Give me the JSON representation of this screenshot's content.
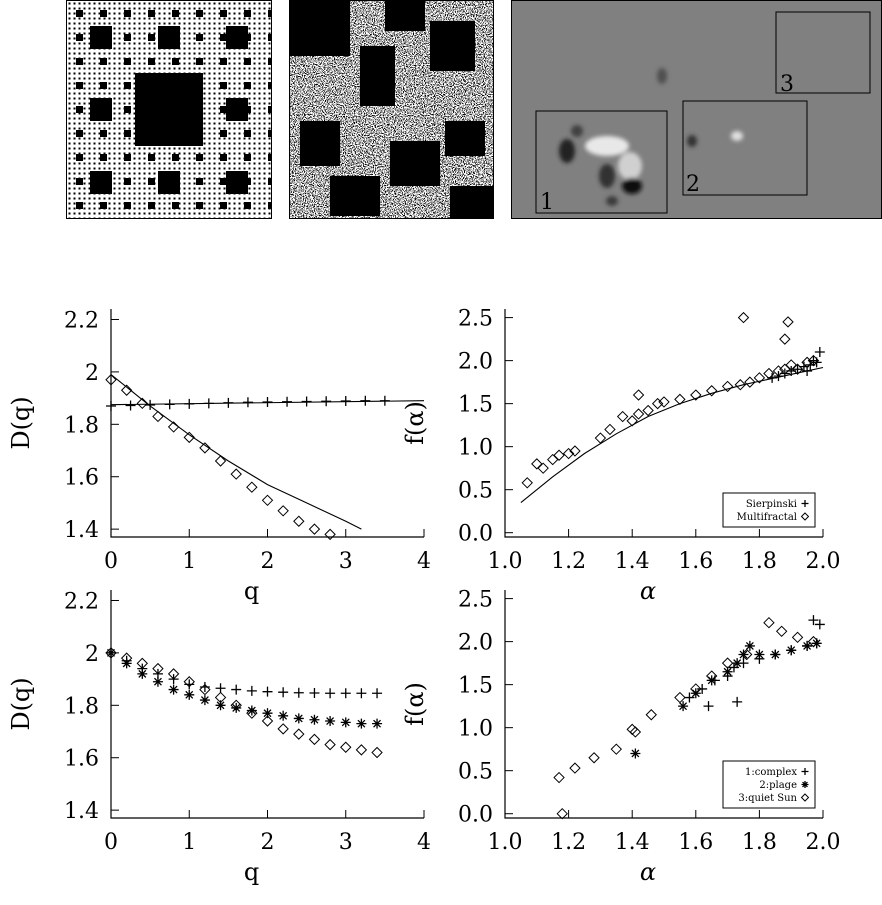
{
  "regions": [
    {
      "label": "1"
    },
    {
      "label": "2"
    },
    {
      "label": "3"
    }
  ],
  "chart_data": [
    {
      "type": "line",
      "panel": "top-left",
      "xlabel": "q",
      "ylabel": "D(q)",
      "xlim": [
        0,
        4
      ],
      "ylim": [
        1.37,
        2.24
      ],
      "xticks": [
        0,
        1,
        2,
        3,
        4
      ],
      "yticks": [
        1.4,
        1.6,
        1.8,
        2.0,
        2.2
      ],
      "series": [
        {
          "marker": "plus",
          "x": [
            0,
            0.25,
            0.5,
            0.75,
            1,
            1.25,
            1.5,
            1.75,
            2,
            2.25,
            2.5,
            2.75,
            3,
            3.25,
            3.5
          ],
          "y": [
            1.87,
            1.872,
            1.874,
            1.876,
            1.878,
            1.88,
            1.882,
            1.884,
            1.885,
            1.886,
            1.887,
            1.888,
            1.889,
            1.89,
            1.89
          ]
        },
        {
          "marker": "diamond",
          "x": [
            0,
            0.2,
            0.4,
            0.6,
            0.8,
            1.0,
            1.2,
            1.4,
            1.6,
            1.8,
            2.0,
            2.2,
            2.4,
            2.6,
            2.8
          ],
          "y": [
            1.97,
            1.93,
            1.88,
            1.83,
            1.79,
            1.75,
            1.71,
            1.66,
            1.61,
            1.56,
            1.51,
            1.47,
            1.43,
            1.4,
            1.38
          ]
        }
      ],
      "fits": [
        {
          "x": [
            0,
            4
          ],
          "y": [
            1.875,
            1.89
          ]
        },
        {
          "x": [
            0,
            0.5,
            1,
            1.5,
            2,
            2.5,
            3,
            3.2
          ],
          "y": [
            1.99,
            1.87,
            1.76,
            1.66,
            1.57,
            1.5,
            1.43,
            1.4
          ]
        }
      ]
    },
    {
      "type": "scatter",
      "panel": "top-right",
      "xlabel": "α",
      "ylabel": "f(α)",
      "xlim": [
        1.0,
        2.0
      ],
      "ylim": [
        -0.05,
        2.6
      ],
      "xticks": [
        "1.0",
        "1.2",
        "1.4",
        "1.6",
        "1.8",
        "2.0"
      ],
      "yticks": [
        "0.0",
        "0.5",
        "1.0",
        "1.5",
        "2.0",
        "2.5"
      ],
      "legend": {
        "position": "bottom-right",
        "entries": [
          {
            "label": "Sierpinski",
            "marker": "plus"
          },
          {
            "label": "Multifractal",
            "marker": "diamond"
          }
        ]
      },
      "series": [
        {
          "name": "Sierpinski",
          "marker": "plus",
          "x": [
            1.84,
            1.86,
            1.88,
            1.9,
            1.92,
            1.94,
            1.96,
            1.98,
            1.95,
            1.97,
            1.99
          ],
          "y": [
            1.8,
            1.82,
            1.85,
            1.88,
            1.9,
            1.93,
            1.95,
            1.98,
            1.88,
            2.0,
            2.1
          ]
        },
        {
          "name": "Multifractal",
          "marker": "diamond",
          "x": [
            1.07,
            1.1,
            1.12,
            1.15,
            1.17,
            1.2,
            1.22,
            1.3,
            1.33,
            1.37,
            1.4,
            1.42,
            1.45,
            1.48,
            1.5,
            1.55,
            1.6,
            1.65,
            1.7,
            1.74,
            1.77,
            1.8,
            1.83,
            1.86,
            1.88,
            1.9,
            1.92,
            1.95,
            1.97,
            1.75,
            1.89,
            1.88,
            1.42
          ],
          "y": [
            0.58,
            0.8,
            0.75,
            0.85,
            0.9,
            0.92,
            0.95,
            1.1,
            1.2,
            1.35,
            1.3,
            1.38,
            1.42,
            1.5,
            1.52,
            1.55,
            1.6,
            1.65,
            1.7,
            1.72,
            1.75,
            1.8,
            1.85,
            1.88,
            1.9,
            1.95,
            1.9,
            1.98,
            2.0,
            2.5,
            2.45,
            2.25,
            1.6
          ]
        }
      ],
      "fits": [
        {
          "x": [
            1.05,
            1.15,
            1.25,
            1.35,
            1.45,
            1.55,
            1.65,
            1.75,
            1.85,
            1.95,
            2.0
          ],
          "y": [
            0.35,
            0.65,
            0.92,
            1.15,
            1.35,
            1.5,
            1.62,
            1.72,
            1.8,
            1.88,
            1.92
          ]
        }
      ]
    },
    {
      "type": "scatter",
      "panel": "bottom-left",
      "xlabel": "q",
      "ylabel": "D(q)",
      "xlim": [
        0,
        4
      ],
      "ylim": [
        1.37,
        2.24
      ],
      "xticks": [
        0,
        1,
        2,
        3,
        4
      ],
      "yticks": [
        1.4,
        1.6,
        1.8,
        2.0,
        2.2
      ],
      "series": [
        {
          "marker": "plus",
          "x": [
            0,
            0.2,
            0.4,
            0.6,
            0.8,
            1.0,
            1.2,
            1.4,
            1.6,
            1.8,
            2.0,
            2.2,
            2.4,
            2.6,
            2.8,
            3.0,
            3.2,
            3.4
          ],
          "y": [
            2.0,
            1.97,
            1.94,
            1.92,
            1.9,
            1.88,
            1.87,
            1.865,
            1.86,
            1.855,
            1.852,
            1.85,
            1.848,
            1.847,
            1.846,
            1.846,
            1.846,
            1.846
          ]
        },
        {
          "marker": "star",
          "x": [
            0,
            0.2,
            0.4,
            0.6,
            0.8,
            1.0,
            1.2,
            1.4,
            1.6,
            1.8,
            2.0,
            2.2,
            2.4,
            2.6,
            2.8,
            3.0,
            3.2,
            3.4
          ],
          "y": [
            2.0,
            1.96,
            1.92,
            1.89,
            1.86,
            1.84,
            1.82,
            1.8,
            1.79,
            1.78,
            1.77,
            1.76,
            1.75,
            1.745,
            1.74,
            1.735,
            1.73,
            1.73
          ]
        },
        {
          "marker": "diamond",
          "x": [
            0,
            0.2,
            0.4,
            0.6,
            0.8,
            1.0,
            1.2,
            1.4,
            1.6,
            1.8,
            2.0,
            2.2,
            2.4,
            2.6,
            2.8,
            3.0,
            3.2,
            3.4
          ],
          "y": [
            2.0,
            1.98,
            1.96,
            1.94,
            1.92,
            1.89,
            1.86,
            1.83,
            1.8,
            1.77,
            1.74,
            1.71,
            1.69,
            1.67,
            1.65,
            1.64,
            1.63,
            1.62
          ]
        }
      ]
    },
    {
      "type": "scatter",
      "panel": "bottom-right",
      "xlabel": "α",
      "ylabel": "f(α)",
      "xlim": [
        1.0,
        2.0
      ],
      "ylim": [
        -0.05,
        2.6
      ],
      "xticks": [
        "1.0",
        "1.2",
        "1.4",
        "1.6",
        "1.8",
        "2.0"
      ],
      "yticks": [
        "0.0",
        "0.5",
        "1.0",
        "1.5",
        "2.0",
        "2.5"
      ],
      "legend": {
        "position": "bottom-right",
        "entries": [
          {
            "label": "1:complex",
            "marker": "plus"
          },
          {
            "label": "2:plage",
            "marker": "star"
          },
          {
            "label": "3:quiet Sun",
            "marker": "diamond"
          }
        ]
      },
      "series": [
        {
          "name": "1:complex",
          "marker": "plus",
          "x": [
            1.58,
            1.62,
            1.66,
            1.7,
            1.72,
            1.75,
            1.8,
            1.85,
            1.9,
            1.95,
            1.98,
            1.99,
            1.97,
            1.64,
            1.73
          ],
          "y": [
            1.35,
            1.45,
            1.55,
            1.6,
            1.7,
            1.75,
            1.8,
            1.85,
            1.9,
            1.95,
            1.98,
            2.2,
            2.25,
            1.25,
            1.3
          ]
        },
        {
          "name": "2:plage",
          "marker": "star",
          "x": [
            1.41,
            1.56,
            1.6,
            1.65,
            1.7,
            1.73,
            1.75,
            1.77,
            1.8,
            1.85,
            1.9,
            1.95,
            1.98
          ],
          "y": [
            0.7,
            1.25,
            1.4,
            1.55,
            1.65,
            1.75,
            1.85,
            1.95,
            1.85,
            1.85,
            1.9,
            1.95,
            1.98
          ]
        },
        {
          "name": "3:quiet Sun",
          "marker": "diamond",
          "x": [
            1.18,
            1.17,
            1.22,
            1.28,
            1.35,
            1.4,
            1.41,
            1.46,
            1.55,
            1.6,
            1.65,
            1.7,
            1.76,
            1.83,
            1.87,
            1.92,
            1.97
          ],
          "y": [
            0.0,
            0.42,
            0.53,
            0.65,
            0.75,
            0.98,
            0.95,
            1.15,
            1.35,
            1.45,
            1.6,
            1.75,
            1.85,
            2.22,
            2.12,
            2.05,
            2.0
          ]
        }
      ]
    }
  ]
}
